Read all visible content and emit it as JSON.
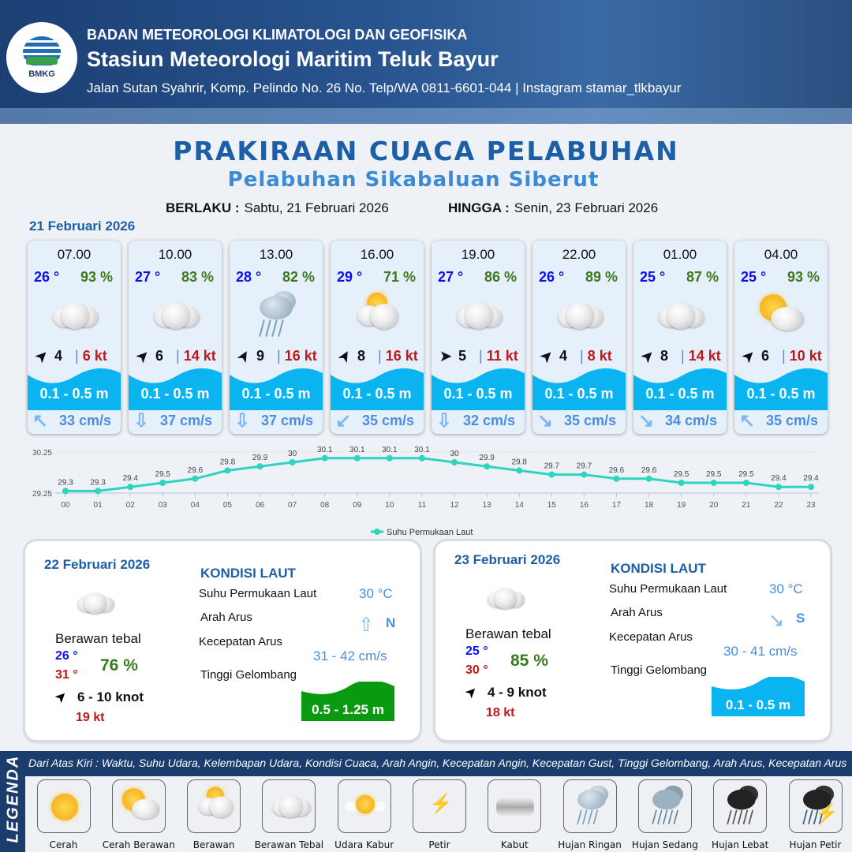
{
  "header": {
    "org": "BADAN METEOROLOGI KLIMATOLOGI DAN GEOFISIKA",
    "station": "Stasiun Meteorologi Maritim Teluk Bayur",
    "address": "Jalan Sutan Syahrir, Komp. Pelindo No. 26 No. Telp/WA 0811-6601-044 | Instagram stamar_tlkbayur",
    "logo_text": "BMKG"
  },
  "title": "PRAKIRAAN CUACA PELABUHAN",
  "subtitle": "Pelabuhan Sikabaluan Siberut",
  "validity": {
    "from_label": "BERLAKU :",
    "from": "Sabtu, 21 Februari 2026",
    "to_label": "HINGGA :",
    "to": "Senin, 23 Februari 2026"
  },
  "day1": {
    "date": "21 Februari 2026",
    "forecasts": [
      {
        "time": "07.00",
        "temp": "26 °",
        "hum": "93 %",
        "icon": "berawan-tebal",
        "wind_dir_deg": -45,
        "wind": "4",
        "gust": "6 kt",
        "wave": "0.1 - 0.5 m",
        "current_dir": "↖",
        "current": "33 cm/s"
      },
      {
        "time": "10.00",
        "temp": "27 °",
        "hum": "83 %",
        "icon": "berawan-tebal",
        "wind_dir_deg": -45,
        "wind": "6",
        "gust": "14 kt",
        "wave": "0.1 - 0.5 m",
        "current_dir": "⇩",
        "current": "37 cm/s"
      },
      {
        "time": "13.00",
        "temp": "28 °",
        "hum": "82 %",
        "icon": "hujan-ringan",
        "wind_dir_deg": -60,
        "wind": "9",
        "gust": "16 kt",
        "wave": "0.1 - 0.5 m",
        "current_dir": "⇩",
        "current": "37 cm/s"
      },
      {
        "time": "16.00",
        "temp": "29 °",
        "hum": "71 %",
        "icon": "berawan",
        "wind_dir_deg": -60,
        "wind": "8",
        "gust": "16 kt",
        "wave": "0.1 - 0.5 m",
        "current_dir": "↙",
        "current": "35 cm/s"
      },
      {
        "time": "19.00",
        "temp": "27 °",
        "hum": "86 %",
        "icon": "berawan-tebal",
        "wind_dir_deg": 0,
        "wind": "5",
        "gust": "11 kt",
        "wave": "0.1 - 0.5 m",
        "current_dir": "⇩",
        "current": "32 cm/s"
      },
      {
        "time": "22.00",
        "temp": "26 °",
        "hum": "89 %",
        "icon": "berawan-tebal",
        "wind_dir_deg": -45,
        "wind": "4",
        "gust": "8 kt",
        "wave": "0.1 - 0.5 m",
        "current_dir": "↘",
        "current": "35 cm/s"
      },
      {
        "time": "01.00",
        "temp": "25 °",
        "hum": "87 %",
        "icon": "berawan-tebal",
        "wind_dir_deg": -45,
        "wind": "8",
        "gust": "14 kt",
        "wave": "0.1 - 0.5 m",
        "current_dir": "↘",
        "current": "34 cm/s"
      },
      {
        "time": "04.00",
        "temp": "25 °",
        "hum": "93 %",
        "icon": "cerah-berawan",
        "wind_dir_deg": -45,
        "wind": "6",
        "gust": "10 kt",
        "wave": "0.1 - 0.5 m",
        "current_dir": "↖",
        "current": "35 cm/s"
      }
    ]
  },
  "chart_data": {
    "type": "line",
    "title": "",
    "x": [
      "00",
      "01",
      "02",
      "03",
      "04",
      "05",
      "06",
      "07",
      "08",
      "09",
      "10",
      "11",
      "12",
      "13",
      "14",
      "15",
      "16",
      "17",
      "18",
      "19",
      "20",
      "21",
      "22",
      "23"
    ],
    "series": [
      {
        "name": "Suhu Permukaan Laut",
        "values": [
          29.3,
          29.3,
          29.4,
          29.5,
          29.6,
          29.8,
          29.9,
          30.0,
          30.1,
          30.1,
          30.1,
          30.1,
          30.0,
          29.9,
          29.8,
          29.7,
          29.7,
          29.6,
          29.6,
          29.5,
          29.5,
          29.5,
          29.4,
          29.4
        ],
        "color": "#2dd4bf"
      }
    ],
    "yticks": [
      "29.25",
      "30.25"
    ],
    "ylim": [
      29.25,
      30.25
    ],
    "legend": "bottom",
    "grid": true
  },
  "panels": [
    {
      "date": "22 Februari 2026",
      "condition": "Berawan tebal",
      "tmin": "26 °",
      "tmax": "31 °",
      "hum": "76 %",
      "wind": "6  - 10 knot",
      "gust": "19 kt",
      "kondisi": "KONDISI LAUT",
      "sst_label": "Suhu Permukaan Laut",
      "sst": "30 °C",
      "arus_label": "Arah Arus",
      "arus_dir": "N",
      "arus_icon": "⇧",
      "kec_label": "Kecepatan Arus",
      "kec": "31 - 42 cm/s",
      "gel_label": "Tinggi Gelombang",
      "gel": "0.5 - 1.25 m",
      "wave_color": "#0a9a12"
    },
    {
      "date": "23 Februari 2026",
      "condition": "Berawan tebal",
      "tmin": "25 °",
      "tmax": "30 °",
      "hum": "85 %",
      "wind": "4 - 9 knot",
      "gust": "18 kt",
      "kondisi": "KONDISI LAUT",
      "sst_label": "Suhu Permukaan Laut",
      "sst": "30 °C",
      "arus_label": "Arah Arus",
      "arus_dir": "S",
      "arus_icon": "↘",
      "kec_label": "Kecepatan Arus",
      "kec": "30 - 41 cm/s",
      "gel_label": "Tinggi Gelombang",
      "gel": "0.1 - 0.5 m",
      "wave_color": "#0ab4f0"
    }
  ],
  "legend": {
    "title": "LEGENDA",
    "description": "Dari Atas Kiri : Waktu, Suhu Udara, Kelembapan Udara, Kondisi Cuaca, Arah Angin, Kecepatan Angin, Kecepatan Gust, Tinggi Gelombang, Arah Arus, Kecepatan Arus",
    "items": [
      {
        "name": "Cerah",
        "icon": "cerah"
      },
      {
        "name": "Cerah Berawan",
        "icon": "cerah-berawan"
      },
      {
        "name": "Berawan",
        "icon": "berawan"
      },
      {
        "name": "Berawan Tebal",
        "icon": "berawan-tebal"
      },
      {
        "name": "Udara Kabur",
        "icon": "udara-kabur"
      },
      {
        "name": "Petir",
        "icon": "petir"
      },
      {
        "name": "Kabut",
        "icon": "kabut"
      },
      {
        "name": "Hujan Ringan",
        "icon": "hujan-ringan"
      },
      {
        "name": "Hujan Sedang",
        "icon": "hujan-sedang"
      },
      {
        "name": "Hujan Lebat",
        "icon": "hujan-lebat"
      },
      {
        "name": "Hujan Petir",
        "icon": "hujan-petir"
      }
    ]
  },
  "colors": {
    "header_bg": "#1c3f74",
    "title": "#1d5fa6",
    "wave": "#0ab4f0",
    "gust": "#c01818",
    "temp": "#1010ee",
    "humidity": "#3a7a1c"
  }
}
